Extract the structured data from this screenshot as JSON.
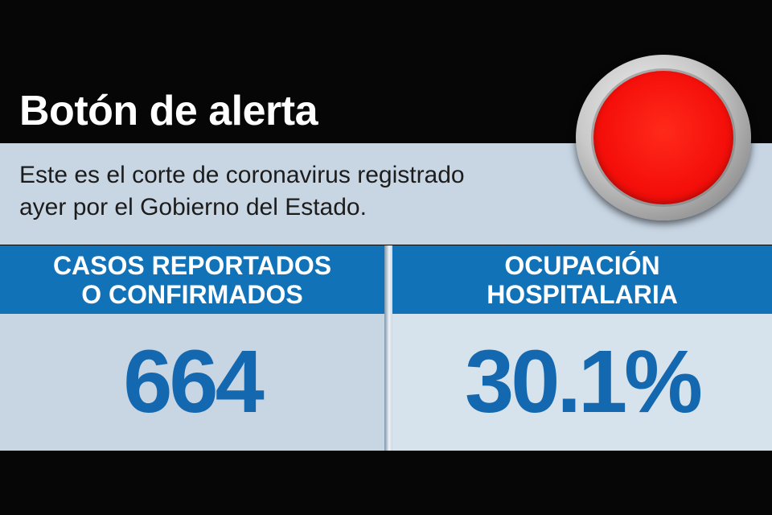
{
  "header": {
    "title": "Botón de alerta",
    "subtitle_line1": "Este es el corte de coronavirus registrado",
    "subtitle_line2": "ayer por el Gobierno del Estado."
  },
  "icons": {
    "alert_button": "red-alert-button-icon"
  },
  "colors": {
    "header_blue": "#1272b8",
    "value_blue": "#1468b0",
    "panel_light": "#c8d6e4",
    "alert_red": "#f50f0a"
  },
  "stats": [
    {
      "label_line1": "CASOS REPORTADOS",
      "label_line2": "O CONFIRMADOS",
      "value": "664"
    },
    {
      "label_line1": "OCUPACIÓN",
      "label_line2": "HOSPITALARIA",
      "value": "30.1%"
    }
  ]
}
